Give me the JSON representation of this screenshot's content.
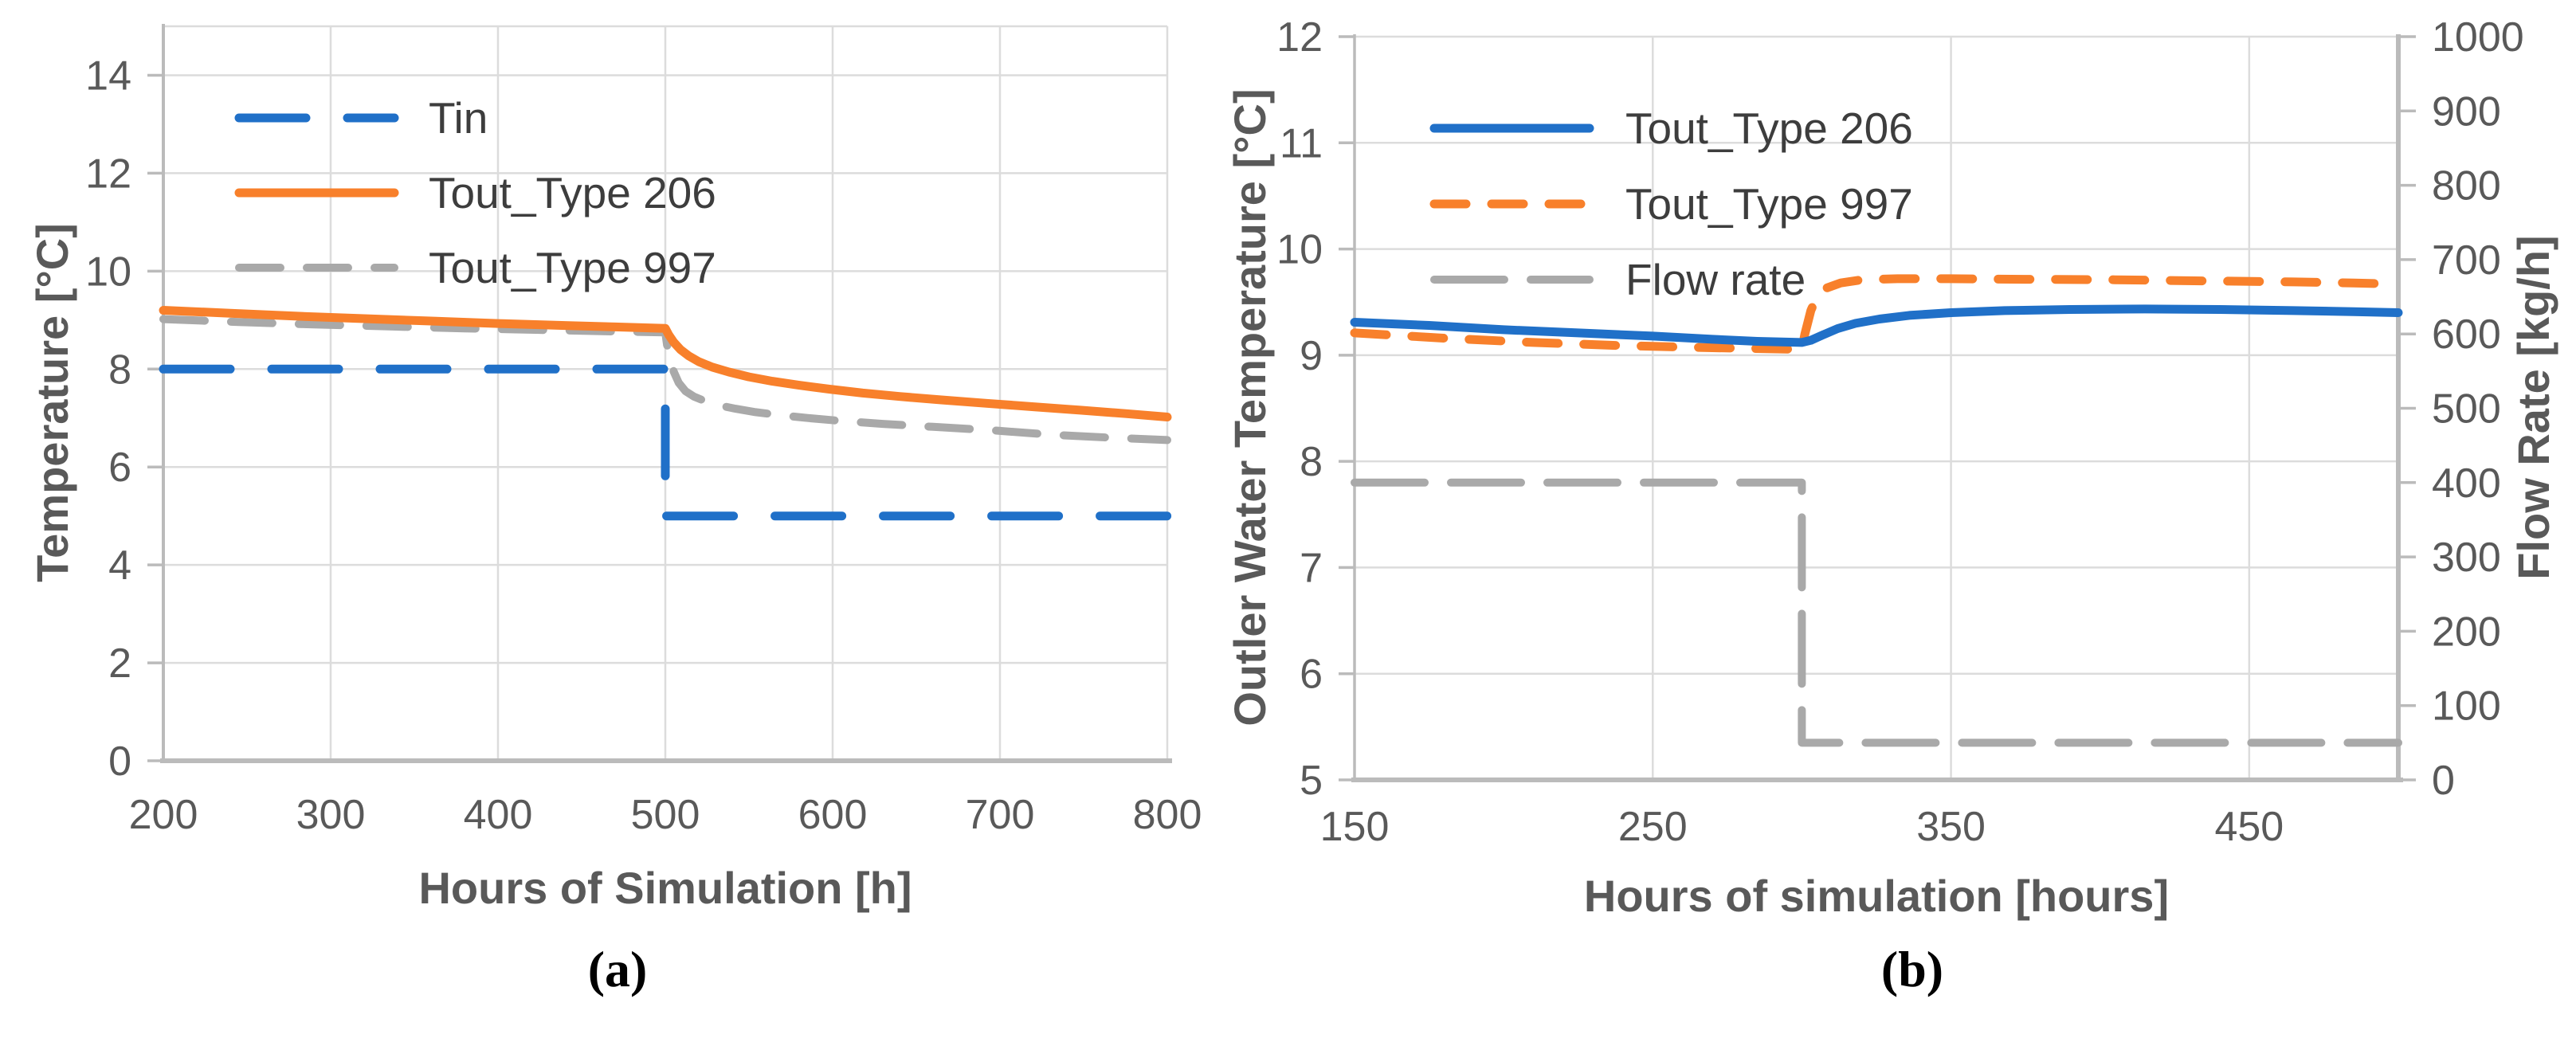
{
  "figure": {
    "background": "#ffffff"
  },
  "colors": {
    "blue": "#2070C8",
    "orange": "#F8802B",
    "gray": "#A9A9A9",
    "gridline": "#DCDCDC",
    "axis_line": "#BBBBBB",
    "tick_text": "#595959",
    "legend_text": "#3d3d3d",
    "caption_text": "#000000"
  },
  "chart_data": [
    {
      "id": "a",
      "type": "line",
      "caption": "(a)",
      "xlabel": "Hours of Simulation [h]",
      "ylabel": "Temperature [°C]",
      "xlim": [
        200,
        800
      ],
      "ylim": [
        0,
        15
      ],
      "xticks": [
        200,
        300,
        400,
        500,
        600,
        700,
        800
      ],
      "yticks": [
        0,
        2,
        4,
        6,
        8,
        10,
        12,
        14
      ],
      "grid": true,
      "legend_position": "top-left-inside",
      "series": [
        {
          "name": "Tin",
          "color_key": "blue",
          "dash": "84 52",
          "width": 11,
          "points": [
            [
              200,
              8
            ],
            [
              500,
              8
            ],
            [
              500,
              5
            ],
            [
              800,
              5
            ]
          ]
        },
        {
          "name": "Tout_Type 206",
          "color_key": "orange",
          "dash": null,
          "width": 11,
          "points": [
            [
              200,
              9.2
            ],
            [
              240,
              9.14
            ],
            [
              280,
              9.08
            ],
            [
              320,
              9.03
            ],
            [
              360,
              8.98
            ],
            [
              400,
              8.93
            ],
            [
              440,
              8.89
            ],
            [
              470,
              8.86
            ],
            [
              500,
              8.83
            ],
            [
              502,
              8.7
            ],
            [
              505,
              8.55
            ],
            [
              509,
              8.4
            ],
            [
              514,
              8.27
            ],
            [
              520,
              8.15
            ],
            [
              528,
              8.04
            ],
            [
              538,
              7.94
            ],
            [
              550,
              7.84
            ],
            [
              564,
              7.75
            ],
            [
              580,
              7.67
            ],
            [
              598,
              7.59
            ],
            [
              618,
              7.51
            ],
            [
              640,
              7.44
            ],
            [
              665,
              7.37
            ],
            [
              692,
              7.3
            ],
            [
              720,
              7.23
            ],
            [
              748,
              7.16
            ],
            [
              775,
              7.09
            ],
            [
              800,
              7.02
            ]
          ]
        },
        {
          "name": "Tout_Type 997",
          "color_key": "gray",
          "dash": "52 33",
          "width": 10,
          "points": [
            [
              200,
              9.02
            ],
            [
              245,
              8.96
            ],
            [
              290,
              8.91
            ],
            [
              335,
              8.87
            ],
            [
              380,
              8.83
            ],
            [
              425,
              8.8
            ],
            [
              465,
              8.77
            ],
            [
              500,
              8.75
            ],
            [
              501,
              8.5
            ],
            [
              503,
              8.2
            ],
            [
              505,
              7.95
            ],
            [
              508,
              7.72
            ],
            [
              512,
              7.55
            ],
            [
              517,
              7.44
            ],
            [
              524,
              7.34
            ],
            [
              532,
              7.26
            ],
            [
              542,
              7.19
            ],
            [
              554,
              7.12
            ],
            [
              568,
              7.06
            ],
            [
              585,
              7.0
            ],
            [
              605,
              6.94
            ],
            [
              630,
              6.88
            ],
            [
              660,
              6.82
            ],
            [
              695,
              6.75
            ],
            [
              730,
              6.66
            ],
            [
              765,
              6.6
            ],
            [
              800,
              6.55
            ]
          ]
        }
      ]
    },
    {
      "id": "b",
      "type": "line",
      "caption": "(b)",
      "xlabel": "Hours of simulation [hours]",
      "ylabel": "Outler Water Temperature [°C]",
      "y2label": "Flow Rate [kg/h]",
      "xlim": [
        150,
        500
      ],
      "ylim": [
        5,
        12
      ],
      "y2lim": [
        0,
        1000
      ],
      "xticks": [
        150,
        250,
        350,
        450
      ],
      "yticks": [
        5,
        6,
        7,
        8,
        9,
        10,
        11,
        12
      ],
      "y2ticks": [
        0,
        100,
        200,
        300,
        400,
        500,
        600,
        700,
        800,
        900,
        1000
      ],
      "grid": true,
      "legend_position": "top-left-inside",
      "series": [
        {
          "name": "Tout_Type 206",
          "color_key": "blue",
          "dash": null,
          "width": 11,
          "points": [
            [
              150,
              9.31
            ],
            [
              175,
              9.28
            ],
            [
              200,
              9.24
            ],
            [
              225,
              9.21
            ],
            [
              250,
              9.18
            ],
            [
              270,
              9.15
            ],
            [
              285,
              9.13
            ],
            [
              300,
              9.12
            ],
            [
              303,
              9.14
            ],
            [
              307,
              9.19
            ],
            [
              312,
              9.25
            ],
            [
              318,
              9.3
            ],
            [
              326,
              9.34
            ],
            [
              336,
              9.375
            ],
            [
              350,
              9.4
            ],
            [
              368,
              9.42
            ],
            [
              390,
              9.43
            ],
            [
              415,
              9.435
            ],
            [
              440,
              9.43
            ],
            [
              465,
              9.42
            ],
            [
              485,
              9.41
            ],
            [
              500,
              9.4
            ]
          ]
        },
        {
          "name": "Tout_Type 997",
          "color_key": "orange",
          "dash": "40 32",
          "width": 11,
          "points": [
            [
              150,
              9.21
            ],
            [
              180,
              9.16
            ],
            [
              210,
              9.12
            ],
            [
              240,
              9.09
            ],
            [
              270,
              9.07
            ],
            [
              290,
              9.06
            ],
            [
              300,
              9.055
            ],
            [
              301,
              9.2
            ],
            [
              303,
              9.42
            ],
            [
              305,
              9.55
            ],
            [
              308,
              9.63
            ],
            [
              313,
              9.68
            ],
            [
              320,
              9.71
            ],
            [
              332,
              9.72
            ],
            [
              350,
              9.72
            ],
            [
              375,
              9.715
            ],
            [
              405,
              9.71
            ],
            [
              435,
              9.7
            ],
            [
              465,
              9.69
            ],
            [
              485,
              9.68
            ],
            [
              500,
              9.67
            ]
          ]
        },
        {
          "name": "Flow rate",
          "color_key": "gray",
          "dash": "88 33",
          "width": 10,
          "axis": "right",
          "points": [
            [
              150,
              400
            ],
            [
              300,
              400
            ],
            [
              300,
              50
            ],
            [
              500,
              50
            ]
          ]
        }
      ]
    }
  ]
}
